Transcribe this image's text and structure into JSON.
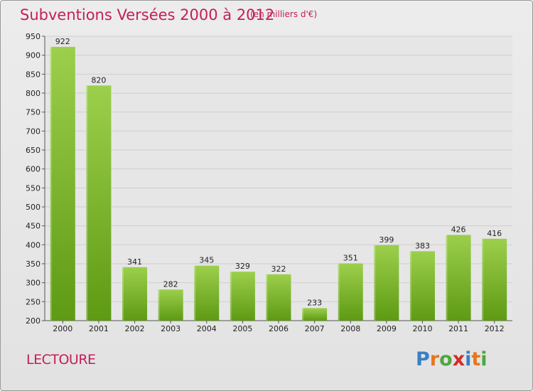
{
  "header": {
    "title": "Subventions Versées 2000 à 2012",
    "unit": "(en milliers d'€)"
  },
  "footer": {
    "commune": "LECTOURE",
    "logo_letters": [
      "P",
      "r",
      "o",
      "x",
      "i",
      "t",
      "i"
    ]
  },
  "colors": {
    "title": "#c41e5a",
    "bar_top": "#9ccf4c",
    "bar_bottom": "#5e9a14",
    "logo": [
      "#3a7fc4",
      "#e8761d",
      "#4aa83c",
      "#d42b2b",
      "#3a7fc4",
      "#e8761d",
      "#4aa83c"
    ]
  },
  "chart_data": {
    "type": "bar",
    "categories": [
      "2000",
      "2001",
      "2002",
      "2003",
      "2004",
      "2005",
      "2006",
      "2007",
      "2008",
      "2009",
      "2010",
      "2011",
      "2012"
    ],
    "values": [
      922,
      820,
      341,
      282,
      345,
      329,
      322,
      233,
      351,
      399,
      383,
      426,
      416
    ],
    "ylim": [
      200,
      950
    ],
    "yticks": [
      200,
      250,
      300,
      350,
      400,
      450,
      500,
      550,
      600,
      650,
      700,
      750,
      800,
      850,
      900,
      950
    ],
    "grid": true,
    "legend": "none"
  }
}
